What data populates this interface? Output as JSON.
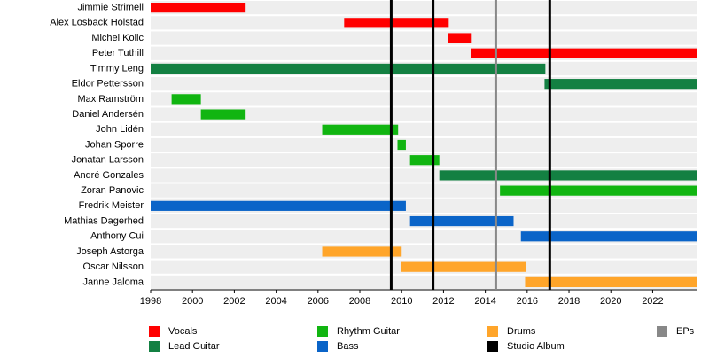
{
  "chart_data": {
    "type": "timeline",
    "categories": [
      "Jimmie Strimell",
      "Alex Losbäck Holstad",
      "Michel Kolic",
      "Peter Tuthill",
      "Timmy Leng",
      "Eldor Pettersson",
      "Max Ramström",
      "Daniel Andersén",
      "John Lidén",
      "Johan Sporre",
      "Jonatan Larsson",
      "André Gonzales",
      "Zoran Panovic",
      "Fredrik Meister",
      "Mathias Dagerhed",
      "Anthony Cui",
      "Joseph Astorga",
      "Oscar Nilsson",
      "Janne Jaloma"
    ],
    "series": [
      {
        "name": "Vocals",
        "color": "#ff0000",
        "start": [
          1998,
          2007.25,
          2012.2,
          2013.3,
          null,
          null,
          null,
          null,
          null,
          null,
          null,
          null,
          null,
          null,
          null,
          null,
          null,
          null,
          null
        ],
        "end": [
          2002.54,
          2012.25,
          2013.35,
          2024.1,
          null,
          null,
          null,
          null,
          null,
          null,
          null,
          null,
          null,
          null,
          null,
          null,
          null,
          null,
          null
        ]
      },
      {
        "name": "Lead Guitar",
        "color": "#138042",
        "start": [
          null,
          null,
          null,
          null,
          1998,
          2016.83,
          null,
          null,
          null,
          null,
          null,
          2011.8,
          null,
          null,
          null,
          null,
          null,
          null,
          null
        ],
        "end": [
          null,
          null,
          null,
          null,
          2016.87,
          2024.1,
          null,
          null,
          null,
          null,
          null,
          2024.1,
          null,
          null,
          null,
          null,
          null,
          null,
          null
        ]
      },
      {
        "name": "Rhythm Guitar",
        "color": "#11b511",
        "start": [
          null,
          null,
          null,
          null,
          null,
          null,
          1999.0,
          2000.4,
          2006.2,
          2009.8,
          2010.4,
          null,
          2014.7,
          null,
          null,
          null,
          null,
          null,
          null
        ],
        "end": [
          null,
          null,
          null,
          null,
          null,
          null,
          2000.4,
          2002.54,
          2009.83,
          2010.2,
          2011.8,
          null,
          2024.1,
          null,
          null,
          null,
          null,
          null,
          null
        ]
      },
      {
        "name": "Bass",
        "color": "#0a64c8",
        "start": [
          null,
          null,
          null,
          null,
          null,
          null,
          null,
          null,
          null,
          null,
          null,
          null,
          null,
          1998,
          2010.4,
          2015.7,
          null,
          null,
          null
        ],
        "end": [
          null,
          null,
          null,
          null,
          null,
          null,
          null,
          null,
          null,
          null,
          null,
          null,
          null,
          2010.2,
          2015.35,
          2024.1,
          null,
          null,
          null
        ]
      },
      {
        "name": "Drums",
        "color": "#ffa52a",
        "start": [
          null,
          null,
          null,
          null,
          null,
          null,
          null,
          null,
          null,
          null,
          null,
          null,
          null,
          null,
          null,
          null,
          2006.2,
          2009.95,
          2015.9
        ],
        "end": [
          null,
          null,
          null,
          null,
          null,
          null,
          null,
          null,
          null,
          null,
          null,
          null,
          null,
          null,
          null,
          null,
          2010.0,
          2015.95,
          2024.1
        ]
      }
    ],
    "events": [
      {
        "name": "Studio Album",
        "color": "#000000",
        "x": [
          2009.5,
          2011.5,
          2017.08
        ]
      },
      {
        "name": "EPs",
        "color": "#888888",
        "x": [
          2014.5
        ]
      }
    ],
    "xlim": [
      1998,
      2024.1
    ],
    "xticks": [
      1998,
      2000,
      2002,
      2004,
      2006,
      2008,
      2010,
      2012,
      2014,
      2016,
      2018,
      2020,
      2022
    ]
  }
}
